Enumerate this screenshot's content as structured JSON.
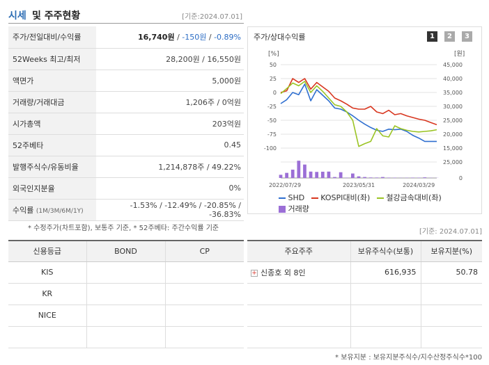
{
  "header": {
    "title_a": "시세",
    "title_b": "및 주주현황",
    "date": "[기준:2024.07.01]"
  },
  "quote_rows": [
    {
      "label": "주가/전일대비/수익률",
      "price": "16,740원",
      "sep1": " / ",
      "change": "-150원",
      "sep2": " / ",
      "rate": "-0.89%"
    },
    {
      "label": "52Weeks 최고/최저",
      "value": "28,200원 / 16,550원"
    },
    {
      "label": "액면가",
      "value": "5,000원"
    },
    {
      "label": "거래량/거래대금",
      "value": "1,206주 / 0억원"
    },
    {
      "label": "시가총액",
      "value": "203억원"
    },
    {
      "label": "52주베타",
      "value": "0.45"
    },
    {
      "label": "발행주식수/유동비율",
      "value": "1,214,878주 / 49.22%"
    },
    {
      "label": "외국인지분율",
      "value": "0%"
    },
    {
      "label": "수익률",
      "label_sub": "(1M/3M/6M/1Y)",
      "value": "-1.53% / -12.49% / -20.85% / -36.83%"
    }
  ],
  "note1": "* 수정주가(차트포함), 보통주 기준, * 52주베타: 주간수익률 기준",
  "chart_panel": {
    "title": "주가/상대수익률",
    "pages": [
      "1",
      "2",
      "3"
    ],
    "page_colors": [
      "#333333",
      "#aaaaaa",
      "#aaaaaa"
    ],
    "left_unit": "[%]",
    "right_unit": "[원]"
  },
  "chart_data": {
    "type": "line",
    "x_ticks": [
      "2022/07/29",
      "2023/05/31",
      "2024/03/29"
    ],
    "left_axis": {
      "ticks": [
        "50",
        "25",
        "0",
        "-25",
        "-50",
        "-75",
        "-100"
      ],
      "ylim": [
        -100,
        50
      ]
    },
    "right_axis": {
      "ticks": [
        "45,000",
        "40,000",
        "35,000",
        "30,000",
        "25,000",
        "20,000",
        "15,000"
      ],
      "ylim": [
        15000,
        45000
      ]
    },
    "volume_axis": {
      "ticks": [
        "25,000",
        "0"
      ],
      "ylim": [
        0,
        25000
      ]
    },
    "x_count": 27,
    "series": [
      {
        "name": "SHD",
        "color": "#2f6fd0",
        "values": [
          -20,
          -13,
          0,
          -4,
          15,
          -15,
          5,
          -5,
          -15,
          -28,
          -30,
          -35,
          -42,
          -50,
          -57,
          -63,
          -68,
          -70,
          -66,
          -67,
          -66,
          -70,
          -77,
          -82,
          -88,
          -88,
          -88
        ]
      },
      {
        "name": "KOSPI대비(좌)",
        "color": "#d8361f",
        "values": [
          0,
          3,
          25,
          18,
          25,
          6,
          18,
          10,
          2,
          -10,
          -15,
          -21,
          -28,
          -30,
          -30,
          -25,
          -35,
          -38,
          -32,
          -40,
          -38,
          -42,
          -45,
          -48,
          -50,
          -54,
          -58
        ]
      },
      {
        "name": "철강금속대비(좌)",
        "color": "#9bc424",
        "values": [
          -2,
          7,
          17,
          12,
          20,
          0,
          12,
          2,
          -10,
          -22,
          -25,
          -35,
          -50,
          -97,
          -92,
          -88,
          -65,
          -78,
          -80,
          -60,
          -65,
          -68,
          -70,
          -71,
          -70,
          -69,
          -67
        ]
      }
    ],
    "volume": {
      "name": "거래량",
      "color": "#9b6fd6",
      "values": [
        5000,
        8000,
        13000,
        27000,
        21000,
        10000,
        9500,
        9800,
        10000,
        1500,
        9000,
        500,
        7000,
        2500,
        1500,
        800,
        700,
        1500,
        600,
        500,
        300,
        400,
        600,
        500,
        1000,
        300,
        200
      ]
    }
  },
  "date2": "[기준: 2024.07.01]",
  "credit": {
    "headers": [
      "신용등급",
      "BOND",
      "CP"
    ],
    "rows": [
      {
        "agency": "KIS",
        "bond": "",
        "cp": ""
      },
      {
        "agency": "KR",
        "bond": "",
        "cp": ""
      },
      {
        "agency": "NICE",
        "bond": "",
        "cp": ""
      },
      {
        "agency": "",
        "bond": "",
        "cp": ""
      }
    ]
  },
  "holders": {
    "headers": [
      "주요주주",
      "보유주식수(보통)",
      "보유지분(%)"
    ],
    "rows": [
      {
        "name": "신종호 외 8인",
        "shares": "616,935",
        "pct": "50.78"
      },
      {
        "name": "",
        "shares": "",
        "pct": ""
      },
      {
        "name": "",
        "shares": "",
        "pct": ""
      },
      {
        "name": "",
        "shares": "",
        "pct": ""
      }
    ]
  },
  "note2": "* 보유지분 : 보유지분주식수/지수산정주식수*100"
}
